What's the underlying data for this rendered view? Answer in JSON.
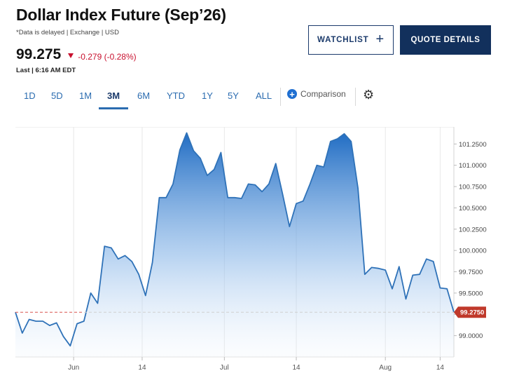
{
  "header": {
    "title": "Dollar Index Future (Sep’26)",
    "delay_note": "*Data is delayed | Exchange | USD",
    "price": "99.275",
    "change": "-0.279 (-0.28%)",
    "last_updated": "Last | 6:16 AM EDT"
  },
  "buttons": {
    "watchlist": "WATCHLIST",
    "watchlist_icon": "+",
    "quote_details": "QUOTE DETAILS"
  },
  "tabs": [
    {
      "label": "1D",
      "active": false
    },
    {
      "label": "5D",
      "active": false
    },
    {
      "label": "1M",
      "active": false
    },
    {
      "label": "3M",
      "active": true
    },
    {
      "label": "6M",
      "active": false
    },
    {
      "label": "YTD",
      "active": false
    },
    {
      "label": "1Y",
      "active": false
    },
    {
      "label": "5Y",
      "active": false
    },
    {
      "label": "ALL",
      "active": false
    }
  ],
  "comparison_label": "Comparison",
  "icons": {
    "comparison": "plus-circle-icon",
    "settings": "gear-icon",
    "price_change": "triangle-down-icon"
  },
  "colors": {
    "line": "#2f72b8",
    "down": "#c8102e",
    "brand_navy": "#12305c",
    "tab_blue": "#2b6cb0"
  },
  "chart_data": {
    "type": "area",
    "series": [
      {
        "x": [
          0,
          2,
          4,
          6,
          8,
          10,
          12,
          14,
          16,
          18,
          20,
          22,
          24,
          26,
          28,
          30,
          32,
          34,
          36,
          38,
          40,
          42,
          44,
          46,
          48,
          50,
          52,
          54,
          56,
          58,
          60,
          62,
          64,
          66,
          68,
          70,
          72,
          74,
          76,
          78,
          80,
          82,
          84,
          86,
          88,
          90,
          92,
          94,
          96,
          98,
          100,
          102,
          104,
          106,
          108,
          110,
          112,
          114,
          116,
          118,
          120,
          122,
          124,
          126,
          128
        ],
        "values": [
          99.275,
          99.03,
          99.19,
          99.17,
          99.17,
          99.12,
          99.15,
          98.99,
          98.88,
          99.14,
          99.17,
          99.5,
          99.38,
          100.05,
          100.03,
          99.9,
          99.94,
          99.87,
          99.72,
          99.47,
          99.86,
          100.62,
          100.62,
          100.78,
          101.18,
          101.38,
          101.17,
          101.08,
          100.88,
          100.95,
          101.15,
          100.62,
          100.62,
          100.61,
          100.78,
          100.77,
          100.69,
          100.78,
          101.02,
          100.66,
          100.28,
          100.55,
          100.58,
          100.78,
          101.0,
          100.98,
          101.28,
          101.31,
          101.37,
          101.28,
          100.73,
          99.72,
          99.8,
          99.79,
          99.77,
          99.55,
          99.81,
          99.43,
          99.71,
          99.72,
          99.9,
          99.87,
          99.56,
          99.55,
          99.275
        ],
        "line_color": "#2f72b8"
      }
    ],
    "x_ticks": [
      {
        "label": "Jun",
        "x": 17
      },
      {
        "label": "14",
        "x": 37
      },
      {
        "label": "Jul",
        "x": 61
      },
      {
        "label": "14",
        "x": 82
      },
      {
        "label": "Aug",
        "x": 108
      },
      {
        "label": "14",
        "x": 124
      }
    ],
    "y_ticks": [
      "101.2500",
      "101.0000",
      "100.7500",
      "100.5000",
      "100.2500",
      "100.0000",
      "99.7500",
      "99.5000",
      "99.2500",
      "99.0000"
    ],
    "y_tick_values": [
      101.25,
      101.0,
      100.75,
      100.5,
      100.25,
      100.0,
      99.75,
      99.5,
      99.25,
      99.0
    ],
    "ylim": [
      98.75,
      101.45
    ],
    "xlim": [
      0,
      128
    ],
    "last_value": 99.275,
    "last_value_label": "99.2750",
    "reference_line": 99.275,
    "grid": "vertical"
  }
}
